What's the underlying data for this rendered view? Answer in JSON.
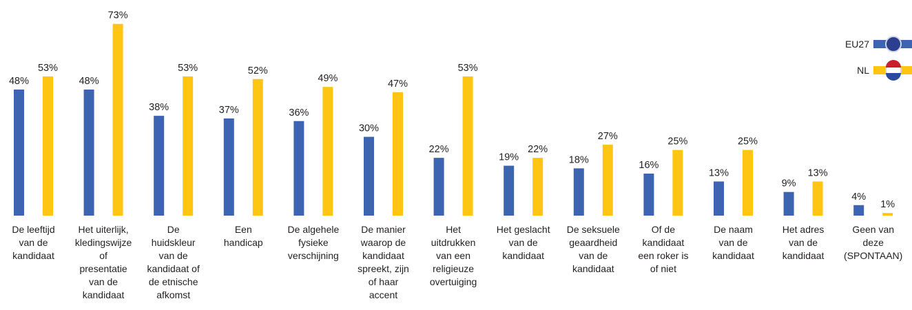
{
  "chart_data": {
    "type": "bar",
    "categories": [
      "De leeftijd\nvan de\nkandidaat",
      "Het uiterlijk,\nkledingswijze\nof\npresentatie\nvan de\nkandidaat",
      "De\nhuidskleur\nvan de\nkandidaat of\nde etnische\nafkomst",
      "Een\nhandicap",
      "De algehele\nfysieke\nverschijning",
      "De manier\nwaarop de\nkandidaat\nspreekt, zijn\nof haar\naccent",
      "Het\nuitdrukken\nvan een\nreligieuze\novertuiging",
      "Het geslacht\nvan de\nkandidaat",
      "De seksuele\ngeaardheid\nvan de\nkandidaat",
      "Of de\nkandidaat\neen roker is\nof niet",
      "De naam\nvan de\nkandidaat",
      "Het adres\nvan de\nkandidaat",
      "Geen van\ndeze\n(SPONTAAN)"
    ],
    "series": [
      {
        "name": "EU27",
        "color": "#3d64b0",
        "values": [
          48,
          48,
          38,
          37,
          36,
          30,
          22,
          19,
          18,
          16,
          13,
          9,
          4
        ],
        "value_labels": [
          "48%",
          "48%",
          "38%",
          "37%",
          "36%",
          "30%",
          "22%",
          "19%",
          "18%",
          "16%",
          "13%",
          "9%",
          "4%"
        ]
      },
      {
        "name": "NL",
        "color": "#ffc512",
        "values": [
          53,
          73,
          53,
          52,
          49,
          47,
          53,
          22,
          27,
          25,
          25,
          13,
          1
        ],
        "value_labels": [
          "53%",
          "73%",
          "53%",
          "52%",
          "49%",
          "47%",
          "53%",
          "22%",
          "27%",
          "25%",
          "25%",
          "13%",
          "1%"
        ]
      }
    ],
    "ylim": [
      0,
      80
    ],
    "legend": "top-right"
  }
}
